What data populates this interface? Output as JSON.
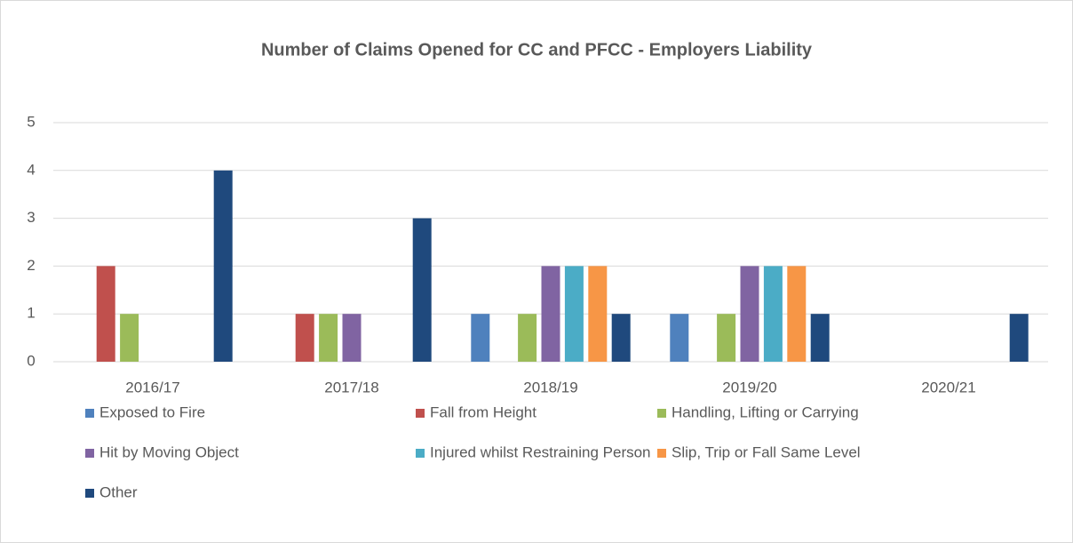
{
  "chart_data": {
    "type": "bar",
    "title": "Number of Claims Opened for CC and PFCC - Employers Liability",
    "categories": [
      "2016/17",
      "2017/18",
      "2018/19",
      "2019/20",
      "2020/21"
    ],
    "series": [
      {
        "name": "Exposed to Fire",
        "color": "#4f81bd",
        "values": [
          0,
          0,
          1,
          1,
          0
        ]
      },
      {
        "name": "Fall from Height",
        "color": "#c0504d",
        "values": [
          2,
          1,
          0,
          0,
          0
        ]
      },
      {
        "name": "Handling, Lifting or Carrying",
        "color": "#9bbb59",
        "values": [
          1,
          1,
          1,
          1,
          0
        ]
      },
      {
        "name": "Hit by Moving Object",
        "color": "#8064a2",
        "values": [
          0,
          1,
          2,
          2,
          0
        ]
      },
      {
        "name": "Injured whilst Restraining Person",
        "color": "#4bacc6",
        "values": [
          0,
          0,
          2,
          2,
          0
        ]
      },
      {
        "name": "Slip, Trip or Fall Same Level",
        "color": "#f79646",
        "values": [
          0,
          0,
          2,
          2,
          0
        ]
      },
      {
        "name": "Other",
        "color": "#1f497d",
        "values": [
          4,
          3,
          1,
          1,
          1
        ]
      }
    ],
    "ylim": [
      0,
      5
    ],
    "yticks": [
      0,
      1,
      2,
      3,
      4,
      5
    ],
    "grid": true,
    "legend": "bottom"
  }
}
